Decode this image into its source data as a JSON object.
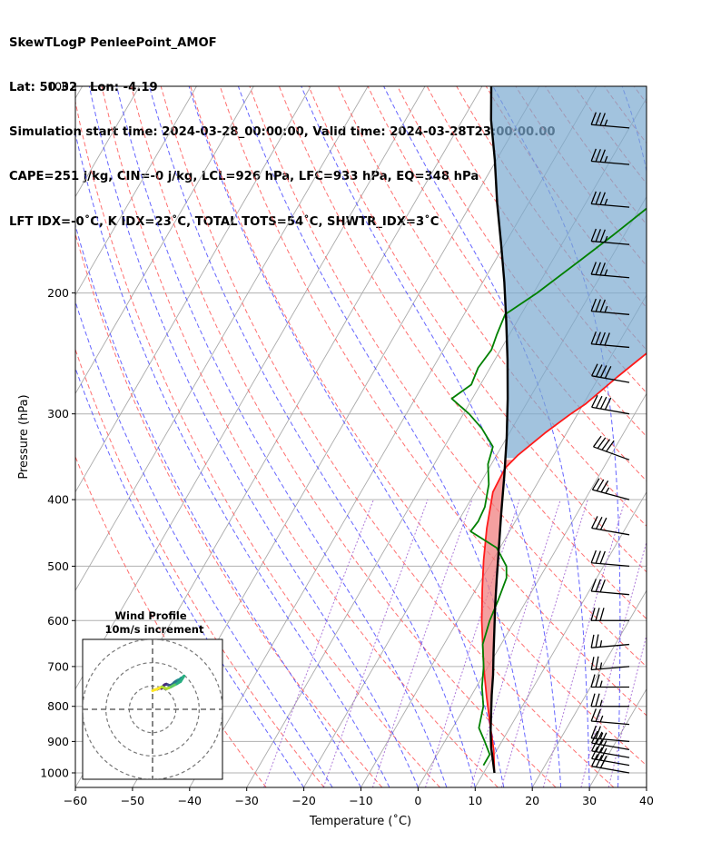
{
  "header": {
    "line1": "SkewTLogP PenleePoint_AMOF",
    "line2": "Lat: 50.32   Lon: -4.19",
    "line3": "Simulation start time: 2024-03-28_00:00:00, Valid time: 2024-03-28T23:00:00.00",
    "line4": "CAPE=251 j/kg, CIN=-0 j/kg, LCL=926 hPa, LFC=933 hPa, EQ=348 hPa",
    "line5": "LFT IDX=-0˚C, K IDX=23˚C, TOTAL TOTS=54˚C, SHWTR_IDX=3˚C"
  },
  "chart_data": {
    "type": "skewt-logp",
    "xlabel": "Temperature (˚C)",
    "ylabel": "Pressure (hPa)",
    "xlim": [
      -60,
      40
    ],
    "ylim": [
      1050,
      100
    ],
    "x_ticks": [
      "−60",
      "−50",
      "−40",
      "−30",
      "−20",
      "−10",
      "0",
      "10",
      "20",
      "30",
      "40"
    ],
    "y_ticks": [
      "100",
      "200",
      "300",
      "400",
      "500",
      "600",
      "700",
      "800",
      "900",
      "1000"
    ],
    "y_tick_values": [
      100,
      200,
      300,
      400,
      500,
      600,
      700,
      800,
      900,
      1000
    ],
    "grid": true,
    "temperature": {
      "color": "#ff1a1a",
      "points": [
        [
          11.9,
          1000
        ],
        [
          9.4,
          925
        ],
        [
          6.2,
          850
        ],
        [
          2.8,
          775
        ],
        [
          -0.8,
          700
        ],
        [
          -3.2,
          650
        ],
        [
          -5.8,
          600
        ],
        [
          -8.9,
          540
        ],
        [
          -11.6,
          490
        ],
        [
          -14.3,
          440
        ],
        [
          -16.9,
          390
        ],
        [
          -17.2,
          360
        ],
        [
          -16.3,
          345
        ],
        [
          -13.8,
          320
        ],
        [
          -11.2,
          300
        ],
        [
          -9.6,
          290
        ],
        [
          -6.8,
          265
        ],
        [
          -3.4,
          240
        ],
        [
          -0.3,
          220
        ],
        [
          2.4,
          200
        ],
        [
          4.8,
          185
        ],
        [
          7.2,
          170
        ],
        [
          10.6,
          150
        ],
        [
          13.8,
          135
        ],
        [
          17.2,
          118
        ],
        [
          19.0,
          108
        ],
        [
          20.6,
          100
        ]
      ]
    },
    "dewpoint": {
      "color": "#008000",
      "points": [
        [
          9.2,
          975
        ],
        [
          9.2,
          940
        ],
        [
          7.0,
          900
        ],
        [
          4.6,
          860
        ],
        [
          3.2,
          800
        ],
        [
          1.0,
          750
        ],
        [
          -0.8,
          700
        ],
        [
          -3.2,
          650
        ],
        [
          -4.4,
          600
        ],
        [
          -5.0,
          560
        ],
        [
          -5.8,
          520
        ],
        [
          -7.0,
          500
        ],
        [
          -10.6,
          470
        ],
        [
          -16.8,
          445
        ],
        [
          -16.5,
          430
        ],
        [
          -16.8,
          410
        ],
        [
          -18.4,
          380
        ],
        [
          -20.6,
          355
        ],
        [
          -21.5,
          335
        ],
        [
          -25.3,
          315
        ],
        [
          -29.0,
          300
        ],
        [
          -33.6,
          285
        ],
        [
          -31.6,
          272
        ],
        [
          -32.1,
          257
        ],
        [
          -31.6,
          242
        ],
        [
          -32.2,
          230
        ],
        [
          -32.8,
          215
        ],
        [
          -29.4,
          200
        ],
        [
          -25.3,
          180
        ],
        [
          -22.0,
          165
        ],
        [
          -19.1,
          152
        ],
        [
          -16.3,
          140
        ],
        [
          -12.7,
          125
        ],
        [
          -10.0,
          114
        ],
        [
          -7.8,
          107
        ],
        [
          -5.8,
          100
        ]
      ]
    },
    "parcel": {
      "color": "#000000",
      "points": [
        [
          11.9,
          1000
        ],
        [
          10.0,
          950
        ],
        [
          8.8,
          920
        ],
        [
          7.0,
          870
        ],
        [
          5.3,
          820
        ],
        [
          3.5,
          770
        ],
        [
          1.7,
          720
        ],
        [
          -0.4,
          670
        ],
        [
          -2.6,
          620
        ],
        [
          -5.0,
          570
        ],
        [
          -7.5,
          520
        ],
        [
          -10.2,
          470
        ],
        [
          -13.2,
          420
        ],
        [
          -16.5,
          370
        ],
        [
          -20.0,
          325
        ],
        [
          -23.8,
          285
        ],
        [
          -27.8,
          250
        ],
        [
          -31.9,
          220
        ],
        [
          -36.2,
          193
        ],
        [
          -40.6,
          170
        ],
        [
          -45.5,
          148
        ],
        [
          -50.3,
          128
        ],
        [
          -55.0,
          112
        ],
        [
          -58.4,
          100
        ]
      ]
    },
    "cape_region_color": "#7aaad0",
    "cin_region_color": "#f08080",
    "wind_barbs": [
      [
        1000,
        280,
        30
      ],
      [
        975,
        280,
        30
      ],
      [
        950,
        280,
        30
      ],
      [
        925,
        280,
        28
      ],
      [
        900,
        275,
        26
      ],
      [
        850,
        275,
        24
      ],
      [
        800,
        270,
        24
      ],
      [
        750,
        270,
        25
      ],
      [
        700,
        265,
        25
      ],
      [
        650,
        265,
        26
      ],
      [
        600,
        270,
        28
      ],
      [
        550,
        275,
        30
      ],
      [
        500,
        275,
        30
      ],
      [
        450,
        280,
        32
      ],
      [
        400,
        285,
        34
      ],
      [
        350,
        290,
        38
      ],
      [
        300,
        280,
        40
      ],
      [
        270,
        280,
        40
      ],
      [
        240,
        275,
        38
      ],
      [
        215,
        275,
        36
      ],
      [
        190,
        275,
        35
      ],
      [
        170,
        275,
        34
      ],
      [
        150,
        275,
        34
      ],
      [
        130,
        275,
        33
      ],
      [
        115,
        275,
        33
      ]
    ],
    "hodograph": {
      "title": "Wind Profile",
      "subtitle": "10m/s increment",
      "u": [
        2.0,
        3.1,
        3.8,
        4.2,
        4.5,
        4.8,
        5.3,
        5.9,
        6.6,
        7.4,
        8.0,
        8.6,
        9.0,
        9.4,
        10.0,
        10.8,
        11.6,
        12.3,
        13.1,
        13.5,
        12.0,
        10.5,
        9.5,
        8.6,
        7.8,
        7.0,
        6.0,
        5.0,
        4.0,
        3.0,
        2.0,
        1.0,
        0.0
      ],
      "v": [
        8.6,
        9.2,
        9.0,
        9.3,
        9.8,
        10.2,
        10.6,
        10.8,
        10.5,
        10.2,
        10.4,
        10.8,
        11.2,
        11.6,
        12.0,
        12.5,
        12.8,
        13.4,
        13.8,
        14.3,
        11.9,
        11.0,
        10.5,
        10.0,
        9.6,
        9.2,
        8.8,
        9.2,
        9.6,
        9.2,
        8.7,
        8.4,
        8.0
      ],
      "rings": [
        10,
        20,
        30
      ],
      "range": 30
    }
  }
}
